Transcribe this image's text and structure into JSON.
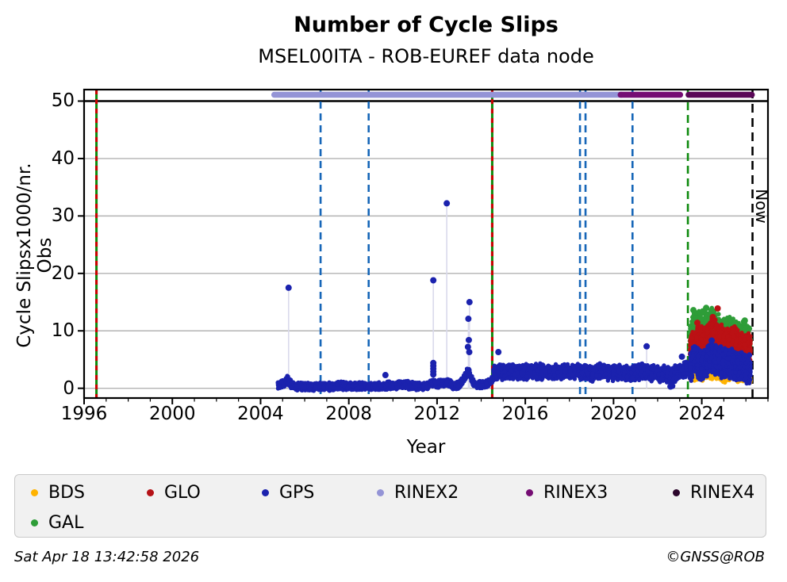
{
  "header": {
    "title": "Number of Cycle Slips",
    "subtitle": "MSEL00ITA - ROB-EUREF data node"
  },
  "footer": {
    "timestamp": "Sat Apr 18 13:42:58 2026",
    "copyright": "©GNSS@ROB"
  },
  "legend": {
    "items": [
      {
        "label": "BDS",
        "color": "#ffb300"
      },
      {
        "label": "GLO",
        "color": "#b51217"
      },
      {
        "label": "GPS",
        "color": "#1b22ae"
      },
      {
        "label": "RINEX2",
        "color": "#9494d6"
      },
      {
        "label": "RINEX3",
        "color": "#750d73"
      },
      {
        "label": "RINEX4",
        "color": "#2c062c"
      },
      {
        "label": "GAL",
        "color": "#2e9d38"
      }
    ]
  },
  "chart_data": {
    "type": "scatter",
    "title": "Number of Cycle Slips",
    "subtitle": "MSEL00ITA - ROB-EUREF data node",
    "xlabel": "Year",
    "ylabel": "Cycle Slipsx1000/nr. Obs",
    "xlim": [
      1996,
      2027
    ],
    "ylim": [
      -1.7,
      52
    ],
    "xticks_major": [
      1996,
      2000,
      2004,
      2008,
      2012,
      2016,
      2020,
      2024
    ],
    "xtick_minor_step": 1,
    "yticks": [
      0,
      10,
      20,
      30,
      40,
      50
    ],
    "grid": {
      "color": "#b3b3b3",
      "line50_color": "#000000",
      "border_color": "#000000"
    },
    "now_label": "Now",
    "stem_color": "#d9d9ec",
    "event_lines": [
      {
        "x": 1996.56,
        "type": "green-red"
      },
      {
        "x": 2006.72,
        "type": "blue"
      },
      {
        "x": 2008.9,
        "type": "blue"
      },
      {
        "x": 2014.5,
        "type": "green-red"
      },
      {
        "x": 2018.48,
        "type": "blue"
      },
      {
        "x": 2018.73,
        "type": "blue"
      },
      {
        "x": 2020.86,
        "type": "blue"
      },
      {
        "x": 2023.37,
        "type": "green-dashed"
      },
      {
        "x": 2026.3,
        "type": "now"
      }
    ],
    "event_line_colors": {
      "blue": "#1666b8",
      "green": "#0e8a0e",
      "red": "#cc0000",
      "now": "#000000"
    },
    "rinex_bars": [
      {
        "name": "RINEX2",
        "start": 2004.62,
        "end": 2020.35,
        "color": "#9494d6",
        "y": 51.1
      },
      {
        "name": "RINEX3",
        "start": 2020.32,
        "end": 2023.02,
        "color": "#750d73",
        "y": 51.1
      },
      {
        "name": "RINEX4",
        "start": 2023.4,
        "end": 2026.27,
        "color": "#5a0757",
        "y": 51.1
      }
    ],
    "series": [
      {
        "name": "GAL",
        "color": "#2e9d38",
        "seed": 11,
        "bands": [
          {
            "t": [
              2023.45,
              2026.22
            ],
            "n": 850,
            "spread": 1.25,
            "mean": [
              [
                2023.45,
                8.8
              ],
              [
                2023.62,
                10.9
              ],
              [
                2023.9,
                11.5
              ],
              [
                2024.15,
                11.2
              ],
              [
                2024.45,
                11.9
              ],
              [
                2024.7,
                10.8
              ],
              [
                2025.0,
                10.0
              ],
              [
                2025.25,
                10.5
              ],
              [
                2025.55,
                9.7
              ],
              [
                2025.85,
                9.3
              ],
              [
                2026.22,
                8.7
              ]
            ]
          }
        ],
        "outliers": [
          [
            2023.62,
            13.6
          ],
          [
            2023.95,
            13.2
          ],
          [
            2024.2,
            14.0
          ],
          [
            2024.5,
            13.4
          ],
          [
            2025.95,
            11.8
          ]
        ],
        "stems": []
      },
      {
        "name": "GLO",
        "color": "#bb1114",
        "seed": 22,
        "bands": [
          {
            "t": [
              2023.45,
              2026.22
            ],
            "n": 850,
            "spread": 1.25,
            "mean": [
              [
                2023.45,
                6.6
              ],
              [
                2023.62,
                8.3
              ],
              [
                2023.95,
                8.8
              ],
              [
                2024.2,
                8.5
              ],
              [
                2024.5,
                9.9
              ],
              [
                2024.75,
                9.2
              ],
              [
                2025.05,
                8.3
              ],
              [
                2025.3,
                8.8
              ],
              [
                2025.6,
                8.1
              ],
              [
                2025.9,
                7.7
              ],
              [
                2026.22,
                7.2
              ]
            ]
          }
        ],
        "outliers": [
          [
            2024.72,
            13.9
          ],
          [
            2024.5,
            12.4
          ],
          [
            2023.8,
            11.4
          ]
        ],
        "stems": []
      },
      {
        "name": "BDS",
        "color": "#ffb300",
        "seed": 33,
        "bands": [
          {
            "t": [
              2023.45,
              2026.22
            ],
            "n": 500,
            "spread": 0.8,
            "mean": [
              [
                2023.45,
                2.4
              ],
              [
                2023.7,
                2.9
              ],
              [
                2024.0,
                2.7
              ],
              [
                2024.3,
                3.1
              ],
              [
                2024.6,
                2.9
              ],
              [
                2025.0,
                2.5
              ],
              [
                2025.3,
                2.9
              ],
              [
                2025.6,
                2.7
              ],
              [
                2026.0,
                2.3
              ],
              [
                2026.22,
                2.1
              ]
            ]
          }
        ],
        "outliers": [],
        "stems": []
      },
      {
        "name": "GPS",
        "color": "#1b22ae",
        "seed": 44,
        "bands": [
          {
            "t": [
              2004.78,
              2014.55
            ],
            "n": 2600,
            "spread": 0.38,
            "mean": [
              [
                2004.78,
                0.4
              ],
              [
                2004.95,
                0.6
              ],
              [
                2005.1,
                1.0
              ],
              [
                2005.22,
                1.5
              ],
              [
                2005.32,
                0.9
              ],
              [
                2005.5,
                0.45
              ],
              [
                2005.8,
                0.3
              ],
              [
                2006.5,
                0.28
              ],
              [
                2007.3,
                0.3
              ],
              [
                2007.6,
                0.55
              ],
              [
                2007.9,
                0.32
              ],
              [
                2009.0,
                0.3
              ],
              [
                2009.7,
                0.45
              ],
              [
                2010.3,
                0.55
              ],
              [
                2010.5,
                0.75
              ],
              [
                2010.8,
                0.4
              ],
              [
                2011.3,
                0.35
              ],
              [
                2011.6,
                0.5
              ],
              [
                2011.85,
                1.1
              ],
              [
                2012.0,
                0.6
              ],
              [
                2012.15,
                0.95
              ],
              [
                2012.35,
                0.8
              ],
              [
                2012.5,
                1.1
              ],
              [
                2012.7,
                0.5
              ],
              [
                2013.0,
                0.55
              ],
              [
                2013.25,
                1.8
              ],
              [
                2013.4,
                3.2
              ],
              [
                2013.5,
                2.4
              ],
              [
                2013.65,
                0.9
              ],
              [
                2013.9,
                0.55
              ],
              [
                2014.2,
                0.7
              ],
              [
                2014.4,
                1.1
              ],
              [
                2014.55,
                1.6
              ]
            ]
          },
          {
            "t": [
              2014.55,
              2023.38
            ],
            "n": 2500,
            "spread": 0.75,
            "mean": [
              [
                2014.55,
                2.5
              ],
              [
                2014.8,
                2.9
              ],
              [
                2015.2,
                2.7
              ],
              [
                2015.7,
                2.9
              ],
              [
                2016.2,
                2.8
              ],
              [
                2016.7,
                3.0
              ],
              [
                2017.1,
                2.7
              ],
              [
                2017.5,
                2.9
              ],
              [
                2018.0,
                2.8
              ],
              [
                2018.5,
                2.9
              ],
              [
                2019.0,
                2.6
              ],
              [
                2019.5,
                3.0
              ],
              [
                2019.9,
                2.6
              ],
              [
                2020.3,
                2.8
              ],
              [
                2020.8,
                2.6
              ],
              [
                2021.2,
                2.9
              ],
              [
                2021.6,
                2.8
              ],
              [
                2022.0,
                2.4
              ],
              [
                2022.3,
                2.6
              ],
              [
                2022.6,
                2.2
              ],
              [
                2022.9,
                2.8
              ],
              [
                2023.15,
                3.3
              ],
              [
                2023.38,
                3.5
              ]
            ]
          },
          {
            "t": [
              2023.45,
              2026.22
            ],
            "n": 1600,
            "spread": 1.45,
            "mean": [
              [
                2023.45,
                3.4
              ],
              [
                2023.62,
                4.9
              ],
              [
                2023.85,
                4.3
              ],
              [
                2024.05,
                4.1
              ],
              [
                2024.25,
                4.7
              ],
              [
                2024.45,
                5.5
              ],
              [
                2024.65,
                5.0
              ],
              [
                2024.9,
                4.4
              ],
              [
                2025.15,
                4.5
              ],
              [
                2025.4,
                4.2
              ],
              [
                2025.7,
                3.9
              ],
              [
                2026.0,
                3.6
              ],
              [
                2026.22,
                3.2
              ]
            ]
          }
        ],
        "outliers": [
          [
            2005.27,
            17.5
          ],
          [
            2009.66,
            2.3
          ],
          [
            2011.83,
            18.8
          ],
          [
            2011.83,
            4.4
          ],
          [
            2011.83,
            3.9
          ],
          [
            2011.83,
            3.4
          ],
          [
            2011.83,
            2.9
          ],
          [
            2011.83,
            2.4
          ],
          [
            2012.44,
            32.2
          ],
          [
            2013.42,
            12.1
          ],
          [
            2013.47,
            15.0
          ],
          [
            2013.44,
            8.4
          ],
          [
            2013.4,
            7.2
          ],
          [
            2013.46,
            6.3
          ],
          [
            2014.78,
            6.3
          ],
          [
            2021.5,
            7.3
          ],
          [
            2022.58,
            0.3
          ],
          [
            2022.66,
            0.4
          ],
          [
            2023.1,
            5.5
          ],
          [
            2024.45,
            8.3
          ]
        ],
        "stems": [
          [
            2005.27,
            17.5
          ],
          [
            2011.83,
            18.8
          ],
          [
            2012.44,
            32.2
          ],
          [
            2013.42,
            12.1
          ],
          [
            2013.47,
            15.0
          ],
          [
            2021.5,
            7.3
          ]
        ]
      }
    ]
  }
}
